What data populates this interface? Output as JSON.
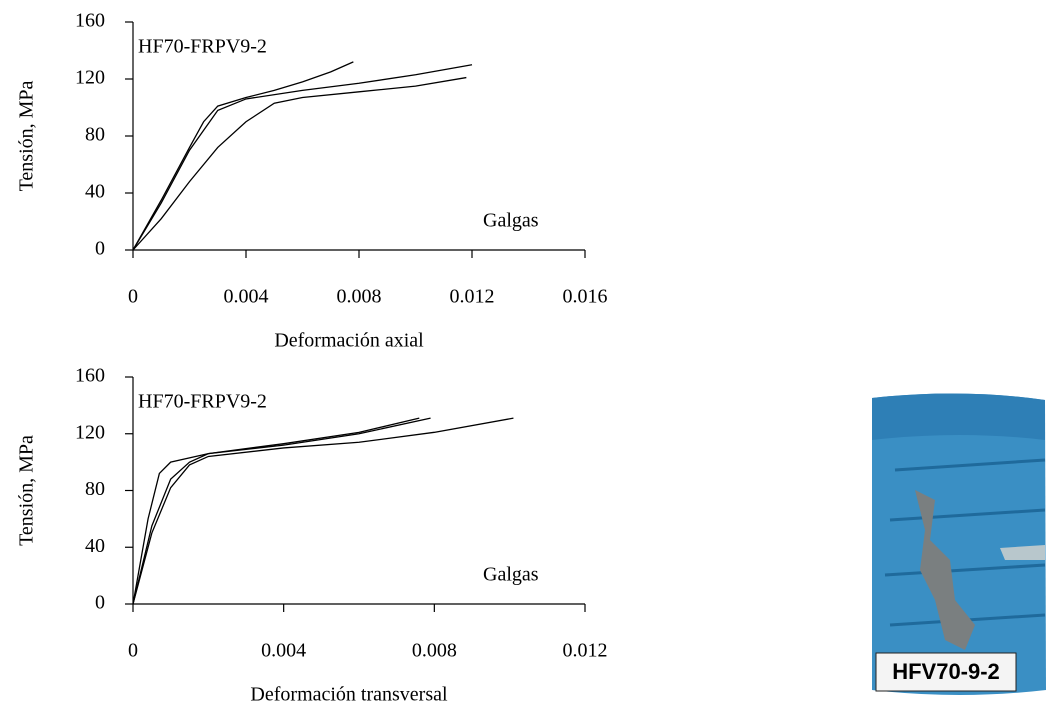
{
  "chart_data": [
    {
      "type": "line",
      "annotation": "HF70-FRPV9-2",
      "note": "Galgas",
      "xlabel": "Deformación axial",
      "ylabel": "Tensión, MPa",
      "xlim": [
        0,
        0.016
      ],
      "ylim": [
        0,
        160
      ],
      "xticks": [
        0,
        0.004,
        0.008,
        0.012,
        0.016
      ],
      "yticks": [
        0,
        40,
        80,
        120,
        160
      ],
      "series": [
        {
          "color": "#000000",
          "x": [
            0,
            0.001,
            0.002,
            0.0025,
            0.003,
            0.004,
            0.005,
            0.006,
            0.007,
            0.0078
          ],
          "values": [
            0,
            35,
            72,
            90,
            101,
            107,
            112,
            118,
            125,
            132
          ]
        },
        {
          "color": "#000000",
          "x": [
            0,
            0.001,
            0.002,
            0.003,
            0.004,
            0.006,
            0.008,
            0.01,
            0.012
          ],
          "values": [
            0,
            33,
            70,
            98,
            106,
            112,
            117,
            123,
            130
          ]
        },
        {
          "color": "#000000",
          "x": [
            0,
            0.001,
            0.002,
            0.003,
            0.004,
            0.005,
            0.006,
            0.008,
            0.01,
            0.0118
          ],
          "values": [
            0,
            22,
            48,
            72,
            90,
            103,
            107,
            111,
            115,
            121
          ]
        }
      ]
    },
    {
      "type": "line",
      "annotation": "HF70-FRPV9-2",
      "note": "Galgas",
      "xlabel": "Deformación transversal",
      "ylabel": "Tensión, MPa",
      "xlim": [
        0,
        0.012
      ],
      "ylim": [
        0,
        160
      ],
      "xticks": [
        0,
        0.004,
        0.008,
        0.012
      ],
      "yticks": [
        0,
        40,
        80,
        120,
        160
      ],
      "series": [
        {
          "color": "#000000",
          "x": [
            0,
            0.0004,
            0.0007,
            0.001,
            0.002,
            0.004,
            0.006,
            0.0076
          ],
          "values": [
            0,
            60,
            92,
            100,
            106,
            113,
            121,
            131
          ]
        },
        {
          "color": "#000000",
          "x": [
            0,
            0.0005,
            0.001,
            0.0015,
            0.002,
            0.004,
            0.006,
            0.0079
          ],
          "values": [
            0,
            55,
            88,
            100,
            106,
            112,
            120,
            131
          ]
        },
        {
          "color": "#000000",
          "x": [
            0,
            0.0005,
            0.001,
            0.0015,
            0.002,
            0.004,
            0.006,
            0.008,
            0.0101
          ],
          "values": [
            0,
            50,
            82,
            98,
            104,
            110,
            114,
            121,
            131
          ]
        }
      ]
    }
  ],
  "photo": {
    "label": "HFV70-9-2"
  }
}
